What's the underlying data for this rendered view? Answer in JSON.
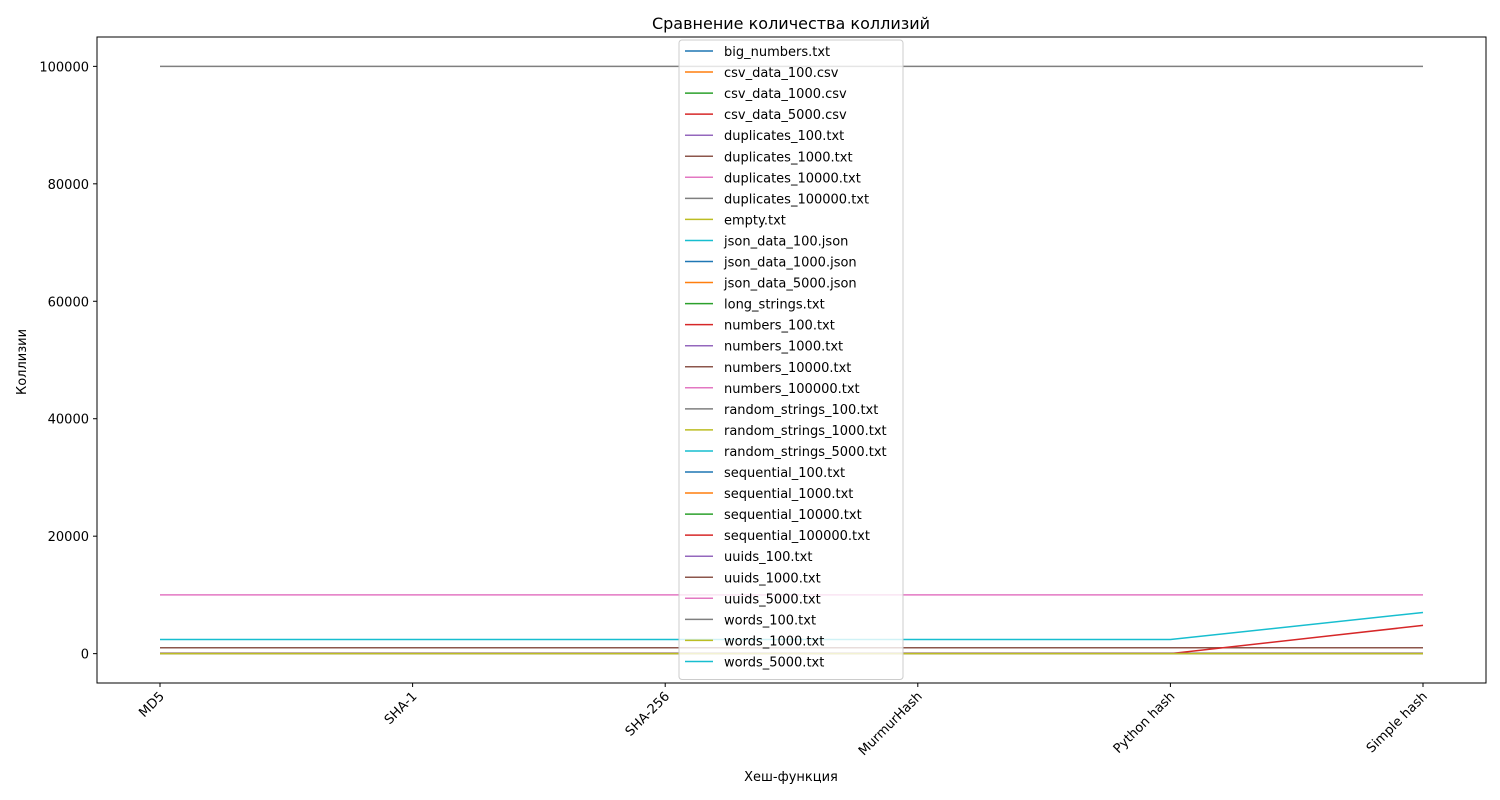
{
  "chart_data": {
    "type": "line",
    "title": "Сравнение количества коллизий",
    "xlabel": "Хеш-функция",
    "ylabel": "Коллизии",
    "categories": [
      "MD5",
      "SHA-1",
      "SHA-256",
      "MurmurHash",
      "Python hash",
      "Simple hash"
    ],
    "ylim": [
      -5000,
      105000
    ],
    "yticks": [
      0,
      20000,
      40000,
      60000,
      80000,
      100000
    ],
    "grid": false,
    "legend_position": "upper center",
    "series": [
      {
        "name": "big_numbers.txt",
        "color": "#1f77b4",
        "values": [
          0,
          0,
          0,
          0,
          0,
          0
        ]
      },
      {
        "name": "csv_data_100.csv",
        "color": "#ff7f0e",
        "values": [
          0,
          0,
          0,
          0,
          0,
          0
        ]
      },
      {
        "name": "csv_data_1000.csv",
        "color": "#2ca02c",
        "values": [
          0,
          0,
          0,
          0,
          0,
          0
        ]
      },
      {
        "name": "csv_data_5000.csv",
        "color": "#d62728",
        "values": [
          0,
          0,
          0,
          0,
          0,
          0
        ]
      },
      {
        "name": "duplicates_100.txt",
        "color": "#9467bd",
        "values": [
          99,
          99,
          99,
          99,
          99,
          99
        ]
      },
      {
        "name": "duplicates_1000.txt",
        "color": "#8c564b",
        "values": [
          999,
          999,
          999,
          999,
          999,
          999
        ]
      },
      {
        "name": "duplicates_10000.txt",
        "color": "#e377c2",
        "values": [
          9999,
          9999,
          9999,
          9999,
          9999,
          9999
        ]
      },
      {
        "name": "duplicates_100000.txt",
        "color": "#7f7f7f",
        "values": [
          99999,
          99999,
          99999,
          99999,
          99999,
          99999
        ]
      },
      {
        "name": "empty.txt",
        "color": "#bcbd22",
        "values": [
          0,
          0,
          0,
          0,
          0,
          0
        ]
      },
      {
        "name": "json_data_100.json",
        "color": "#17becf",
        "values": [
          0,
          0,
          0,
          0,
          0,
          0
        ]
      },
      {
        "name": "json_data_1000.json",
        "color": "#1f77b4",
        "values": [
          0,
          0,
          0,
          0,
          0,
          0
        ]
      },
      {
        "name": "json_data_5000.json",
        "color": "#ff7f0e",
        "values": [
          0,
          0,
          0,
          0,
          0,
          0
        ]
      },
      {
        "name": "long_strings.txt",
        "color": "#2ca02c",
        "values": [
          0,
          0,
          0,
          0,
          0,
          0
        ]
      },
      {
        "name": "numbers_100.txt",
        "color": "#d62728",
        "values": [
          0,
          0,
          0,
          0,
          0,
          0
        ]
      },
      {
        "name": "numbers_1000.txt",
        "color": "#9467bd",
        "values": [
          0,
          0,
          0,
          0,
          0,
          0
        ]
      },
      {
        "name": "numbers_10000.txt",
        "color": "#8c564b",
        "values": [
          0,
          0,
          0,
          0,
          0,
          0
        ]
      },
      {
        "name": "numbers_100000.txt",
        "color": "#e377c2",
        "values": [
          0,
          0,
          0,
          0,
          0,
          0
        ]
      },
      {
        "name": "random_strings_100.txt",
        "color": "#7f7f7f",
        "values": [
          0,
          0,
          0,
          0,
          0,
          0
        ]
      },
      {
        "name": "random_strings_1000.txt",
        "color": "#bcbd22",
        "values": [
          0,
          0,
          0,
          0,
          0,
          0
        ]
      },
      {
        "name": "random_strings_5000.txt",
        "color": "#17becf",
        "values": [
          0,
          0,
          0,
          0,
          0,
          0
        ]
      },
      {
        "name": "sequential_100.txt",
        "color": "#1f77b4",
        "values": [
          0,
          0,
          0,
          0,
          0,
          0
        ]
      },
      {
        "name": "sequential_1000.txt",
        "color": "#ff7f0e",
        "values": [
          0,
          0,
          0,
          0,
          0,
          0
        ]
      },
      {
        "name": "sequential_10000.txt",
        "color": "#2ca02c",
        "values": [
          0,
          0,
          0,
          0,
          0,
          0
        ]
      },
      {
        "name": "sequential_100000.txt",
        "color": "#d62728",
        "values": [
          0,
          0,
          0,
          0,
          0,
          4800
        ]
      },
      {
        "name": "uuids_100.txt",
        "color": "#9467bd",
        "values": [
          0,
          0,
          0,
          0,
          0,
          0
        ]
      },
      {
        "name": "uuids_1000.txt",
        "color": "#8c564b",
        "values": [
          0,
          0,
          0,
          0,
          0,
          0
        ]
      },
      {
        "name": "uuids_5000.txt",
        "color": "#e377c2",
        "values": [
          0,
          0,
          0,
          0,
          0,
          0
        ]
      },
      {
        "name": "words_100.txt",
        "color": "#7f7f7f",
        "values": [
          0,
          0,
          0,
          0,
          0,
          0
        ]
      },
      {
        "name": "words_1000.txt",
        "color": "#bcbd22",
        "values": [
          0,
          0,
          0,
          0,
          0,
          0
        ]
      },
      {
        "name": "words_5000.txt",
        "color": "#17becf",
        "values": [
          2400,
          2400,
          2400,
          2400,
          2400,
          7000
        ]
      }
    ]
  }
}
